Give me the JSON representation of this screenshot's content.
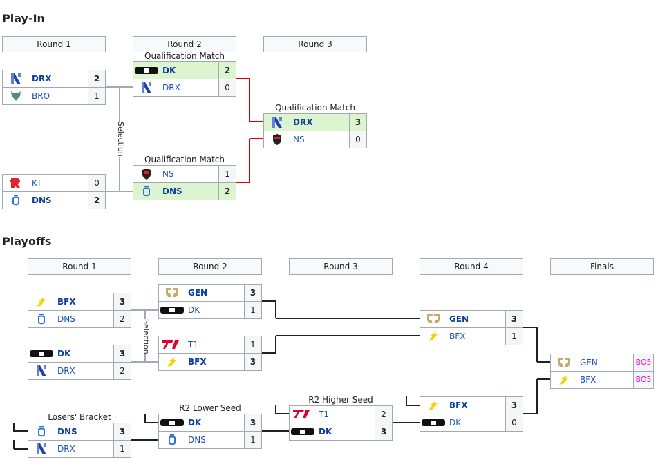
{
  "playin": {
    "title": "Play-In",
    "rounds": [
      "Round 1",
      "Round 2",
      "Round 3"
    ],
    "selection_label": "Selection",
    "matches": [
      {
        "label": "",
        "teams": [
          {
            "name": "DRX",
            "logo": "drx-logo",
            "score": "2",
            "winner": true
          },
          {
            "name": "BRO",
            "logo": "bro-logo",
            "score": "1",
            "winner": false
          }
        ]
      },
      {
        "label": "",
        "teams": [
          {
            "name": "KT",
            "logo": "kt-logo",
            "score": "0",
            "winner": false
          },
          {
            "name": "DNS",
            "logo": "dns-logo",
            "score": "2",
            "winner": true
          }
        ]
      },
      {
        "label": "Qualification Match",
        "qualified": true,
        "teams": [
          {
            "name": "DK",
            "logo": "dk-logo",
            "score": "2",
            "winner": true
          },
          {
            "name": "DRX",
            "logo": "drx-logo",
            "score": "0",
            "winner": false
          }
        ]
      },
      {
        "label": "Qualification Match",
        "qualified": true,
        "teams": [
          {
            "name": "NS",
            "logo": "ns-logo",
            "score": "1",
            "winner": false
          },
          {
            "name": "DNS",
            "logo": "dns-logo",
            "score": "2",
            "winner": true
          }
        ]
      },
      {
        "label": "Qualification Match",
        "qualified": true,
        "teams": [
          {
            "name": "DRX",
            "logo": "drx-logo",
            "score": "3",
            "winner": true
          },
          {
            "name": "NS",
            "logo": "ns-logo",
            "score": "0",
            "winner": false
          }
        ]
      }
    ]
  },
  "playoffs": {
    "title": "Playoffs",
    "rounds": [
      "Round 1",
      "Round 2",
      "Round 3",
      "Round 4",
      "Finals"
    ],
    "selection_label": "Selection",
    "matches": [
      {
        "label": "",
        "teams": [
          {
            "name": "BFX",
            "logo": "bfx-logo",
            "score": "3",
            "winner": true
          },
          {
            "name": "DNS",
            "logo": "dns-logo",
            "score": "2",
            "winner": false
          }
        ]
      },
      {
        "label": "",
        "teams": [
          {
            "name": "DK",
            "logo": "dk-logo",
            "score": "3",
            "winner": true
          },
          {
            "name": "DRX",
            "logo": "drx-logo",
            "score": "2",
            "winner": false
          }
        ]
      },
      {
        "label": "Losers' Bracket",
        "teams": [
          {
            "name": "DNS",
            "logo": "dns-logo",
            "score": "3",
            "winner": true
          },
          {
            "name": "DRX",
            "logo": "drx-logo",
            "score": "1",
            "winner": false
          }
        ]
      },
      {
        "label": "",
        "teams": [
          {
            "name": "GEN",
            "logo": "gen-logo",
            "score": "3",
            "winner": true
          },
          {
            "name": "DK",
            "logo": "dk-logo",
            "score": "1",
            "winner": false
          }
        ]
      },
      {
        "label": "",
        "teams": [
          {
            "name": "T1",
            "logo": "t1-logo",
            "score": "1",
            "winner": false
          },
          {
            "name": "BFX",
            "logo": "bfx-logo",
            "score": "3",
            "winner": true
          }
        ]
      },
      {
        "label": "R2 Lower Seed",
        "teams": [
          {
            "name": "DK",
            "logo": "dk-logo",
            "score": "3",
            "winner": true
          },
          {
            "name": "DNS",
            "logo": "dns-logo",
            "score": "1",
            "winner": false
          }
        ]
      },
      {
        "label": "R2 Higher Seed",
        "teams": [
          {
            "name": "T1",
            "logo": "t1-logo",
            "score": "2",
            "winner": false
          },
          {
            "name": "DK",
            "logo": "dk-logo",
            "score": "3",
            "winner": true
          }
        ]
      },
      {
        "label": "",
        "teams": [
          {
            "name": "GEN",
            "logo": "gen-logo",
            "score": "3",
            "winner": true
          },
          {
            "name": "BFX",
            "logo": "bfx-logo",
            "score": "1",
            "winner": false
          }
        ]
      },
      {
        "label": "",
        "teams": [
          {
            "name": "BFX",
            "logo": "bfx-logo",
            "score": "3",
            "winner": true
          },
          {
            "name": "DK",
            "logo": "dk-logo",
            "score": "0",
            "winner": false
          }
        ]
      },
      {
        "label": "",
        "upcoming": true,
        "teams": [
          {
            "name": "GEN",
            "logo": "gen-logo",
            "score": "BO5",
            "winner": false
          },
          {
            "name": "BFX",
            "logo": "bfx-logo",
            "score": "BO5",
            "winner": false
          }
        ]
      }
    ]
  },
  "colors": {
    "qualified_bg": "#dcf5d0",
    "team_link": "#1d4fb8",
    "bo5": "#ee00ee",
    "playin_advance_line": "#e00000"
  }
}
